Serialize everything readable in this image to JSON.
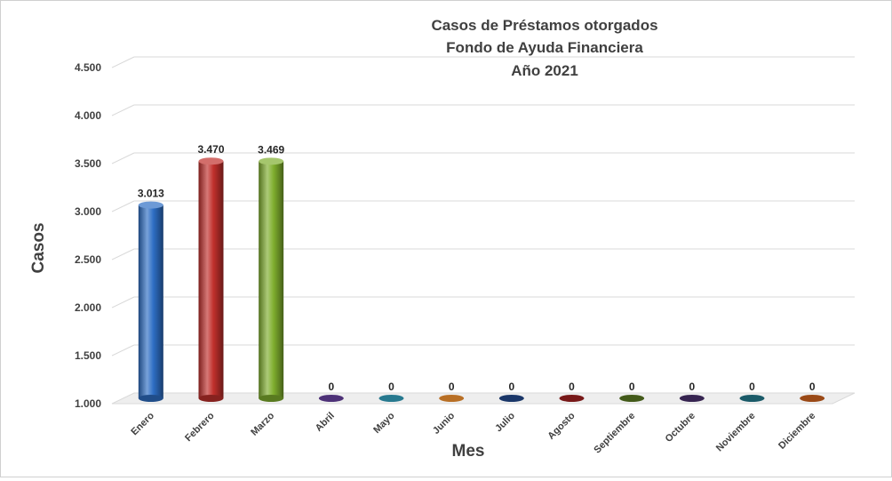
{
  "chart_data": {
    "type": "bar",
    "title": [
      "Casos de Préstamos otorgados",
      "Fondo de Ayuda Financiera",
      "Año 2021"
    ],
    "xlabel": "Mes",
    "ylabel": "Casos",
    "ylim": [
      1000,
      4500
    ],
    "yticks": [
      1000,
      1500,
      2000,
      2500,
      3000,
      3500,
      4000,
      4500
    ],
    "ytick_labels": [
      "1.000",
      "1.500",
      "2.000",
      "2.500",
      "3.000",
      "3.500",
      "4.000",
      "4.500"
    ],
    "categories": [
      "Enero",
      "Febrero",
      "Marzo",
      "Abril",
      "Mayo",
      "Junio",
      "Julio",
      "Agosto",
      "Septiembre",
      "Octubre",
      "Noviembre",
      "Diciembre"
    ],
    "values": [
      3013,
      3470,
      3469,
      0,
      0,
      0,
      0,
      0,
      0,
      0,
      0,
      0
    ],
    "data_labels": [
      "3.013",
      "3.470",
      "3.469",
      "0",
      "0",
      "0",
      "0",
      "0",
      "0",
      "0",
      "0",
      "0"
    ],
    "colors": [
      "#2e6ec4",
      "#c0302c",
      "#7fae2e",
      "#5b3a8c",
      "#2e8ea8",
      "#d9822b",
      "#1f3f7a",
      "#8c1c1c",
      "#4f6a1f",
      "#3f2a5e",
      "#1f6a7a",
      "#b5561a"
    ],
    "grid": true,
    "legend": "none"
  }
}
